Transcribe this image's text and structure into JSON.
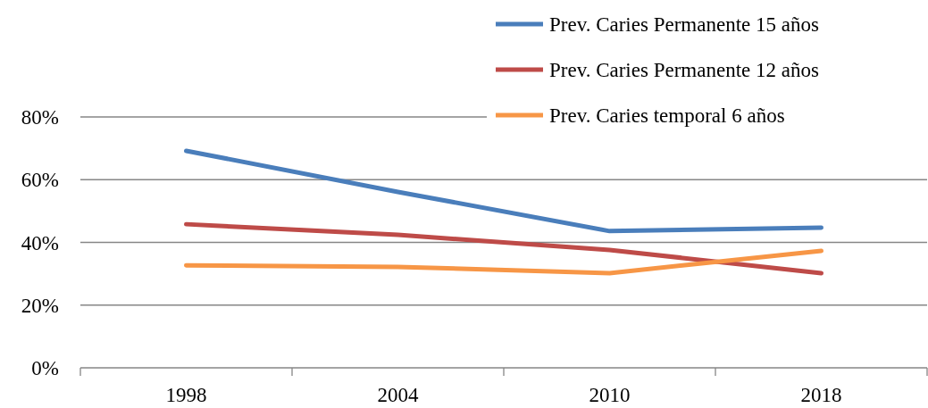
{
  "chart_data": {
    "type": "line",
    "categories": [
      "1998",
      "2004",
      "2010",
      "2018"
    ],
    "series": [
      {
        "name": "Prev. Caries Permanente 15 años",
        "color": "#4a7ebb",
        "values": [
          0.692,
          0.561,
          0.436,
          0.447
        ]
      },
      {
        "name": "Prev. Caries Permanente 12 años",
        "color": "#be4b48",
        "values": [
          0.458,
          0.424,
          0.376,
          0.302
        ]
      },
      {
        "name": "Prev. Caries temporal 6 años",
        "color": "#f79646",
        "values": [
          0.327,
          0.322,
          0.302,
          0.373
        ]
      }
    ],
    "ylim": [
      0,
      0.8
    ],
    "yticks": [
      {
        "value": 0,
        "label": "0%"
      },
      {
        "value": 0.2,
        "label": "20%"
      },
      {
        "value": 0.4,
        "label": "40%"
      },
      {
        "value": 0.6,
        "label": "60%"
      },
      {
        "value": 0.8,
        "label": "80%"
      }
    ],
    "grid": "y",
    "legend": "top right",
    "marker": "none",
    "line_style": "solid"
  }
}
